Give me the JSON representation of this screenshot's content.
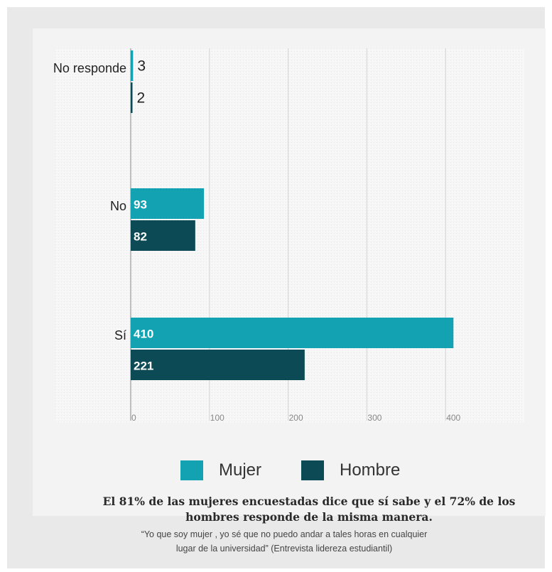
{
  "chart_data": {
    "type": "bar",
    "orientation": "horizontal",
    "categories": [
      "No responde",
      "No",
      "Sí"
    ],
    "series": [
      {
        "name": "Mujer",
        "values": [
          3,
          93,
          410
        ],
        "color": "#13a2b2"
      },
      {
        "name": "Hombre",
        "values": [
          2,
          82,
          221
        ],
        "color": "#0c4b55"
      }
    ],
    "xticks": [
      "0",
      "100",
      "200",
      "300",
      "400"
    ],
    "xlim": [
      0,
      500
    ],
    "grid": true,
    "legend_position": "bottom"
  },
  "legend": {
    "mujer": "Mujer",
    "hombre": "Hombre"
  },
  "caption": {
    "line1": "El 81% de las mujeres encuestadas dice que sí sabe y el 72% de los",
    "line2": "hombres responde de la misma manera."
  },
  "quote": {
    "line1": "“Yo que soy mujer , yo sé que no puedo andar a tales horas en cualquier",
    "line2": "lugar de la universidad” (Entrevista lidereza estudiantil)"
  }
}
